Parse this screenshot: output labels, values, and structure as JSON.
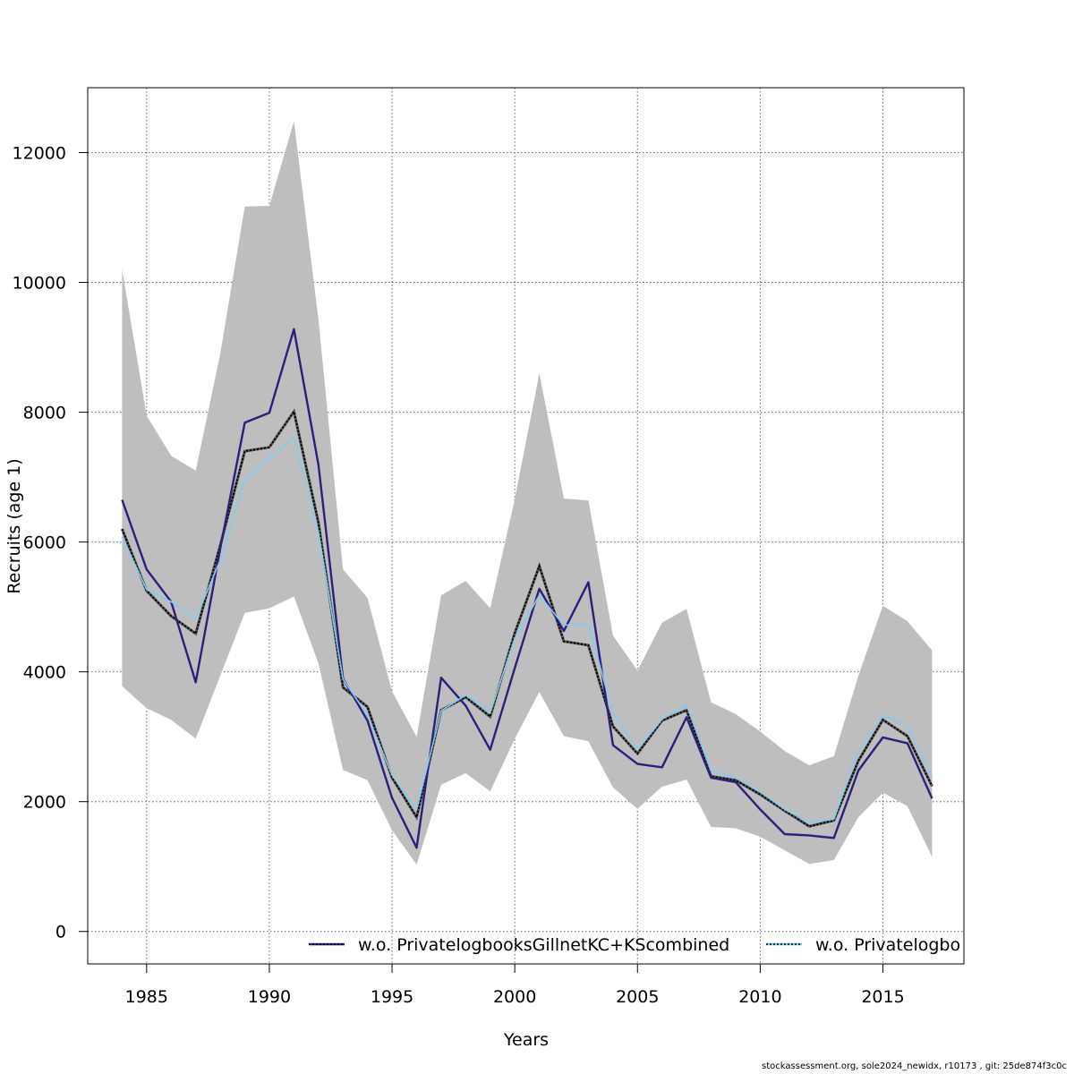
{
  "chart_data": {
    "type": "line",
    "title": "",
    "xlabel": "Years",
    "ylabel": "Recruits (age 1)",
    "xlim": [
      1982.6,
      2018.3
    ],
    "ylim": [
      -500,
      13000
    ],
    "xticks": [
      1985,
      1990,
      1995,
      2000,
      2005,
      2010,
      2015
    ],
    "yticks": [
      0,
      2000,
      4000,
      6000,
      8000,
      10000,
      12000
    ],
    "xtick_labels": [
      "1985",
      "1990",
      "1995",
      "2000",
      "2005",
      "2010",
      "2015"
    ],
    "ytick_labels": [
      "0",
      "2000",
      "4000",
      "6000",
      "8000",
      "10000",
      "12000"
    ],
    "grid": true,
    "legend_position": "bottom",
    "colors": {
      "band": "#bebebe",
      "base": "#222222",
      "series1": "#2d1e7e",
      "series2": "#7fcdf2",
      "grid": "#666666"
    },
    "x": [
      1984,
      1985,
      1986,
      1987,
      1988,
      1989,
      1990,
      1991,
      1992,
      1993,
      1994,
      1995,
      1996,
      1997,
      1998,
      1999,
      2000,
      2001,
      2002,
      2003,
      2004,
      2005,
      2006,
      2007,
      2008,
      2009,
      2010,
      2011,
      2012,
      2013,
      2014,
      2015,
      2016,
      2017
    ],
    "band": {
      "upper": [
        10200,
        7950,
        7330,
        7100,
        8900,
        11170,
        11180,
        12480,
        9430,
        5580,
        5140,
        3700,
        3000,
        5180,
        5400,
        4980,
        6660,
        8600,
        6670,
        6640,
        4560,
        4020,
        4760,
        4970,
        3530,
        3350,
        3080,
        2780,
        2560,
        2700,
        3940,
        5020,
        4780,
        4330
      ],
      "lower": [
        3780,
        3440,
        3260,
        2970,
        3940,
        4910,
        4980,
        5160,
        4130,
        2490,
        2330,
        1560,
        1030,
        2260,
        2440,
        2160,
        2970,
        3690,
        3010,
        2930,
        2220,
        1890,
        2230,
        2340,
        1610,
        1590,
        1460,
        1250,
        1040,
        1100,
        1760,
        2140,
        1930,
        1150
      ]
    },
    "base_series": [
      6200,
      5250,
      4860,
      4590,
      5950,
      7400,
      7460,
      8010,
      6300,
      3760,
      3460,
      2370,
      1760,
      3410,
      3610,
      3310,
      4600,
      5630,
      4470,
      4410,
      3160,
      2740,
      3250,
      3410,
      2390,
      2330,
      2110,
      1860,
      1620,
      1710,
      2630,
      3260,
      3010,
      2240
    ],
    "series": [
      {
        "name": "w.o. PrivatelogbooksGillnetKC+KScombined",
        "values": [
          6650,
          5580,
          5080,
          3840,
          5900,
          7840,
          7990,
          9280,
          7190,
          3900,
          3250,
          2060,
          1290,
          3910,
          3480,
          2800,
          4060,
          5280,
          4630,
          5380,
          2870,
          2580,
          2530,
          3300,
          2370,
          2300,
          1880,
          1500,
          1480,
          1440,
          2480,
          2990,
          2900,
          2050
        ]
      },
      {
        "name": "w.o. Privatelogbo",
        "values": [
          6080,
          5270,
          5080,
          4820,
          5720,
          6960,
          7280,
          7620,
          6150,
          3890,
          3330,
          2410,
          1880,
          3400,
          3640,
          3370,
          4520,
          5180,
          4720,
          4740,
          3360,
          2800,
          3270,
          3490,
          2470,
          2370,
          2150,
          1880,
          1680,
          1730,
          2770,
          3330,
          3180,
          2380
        ]
      }
    ],
    "footer": "stockassessment.org, sole2024_newidx, r10173 , git: 25de874f3c0c"
  }
}
